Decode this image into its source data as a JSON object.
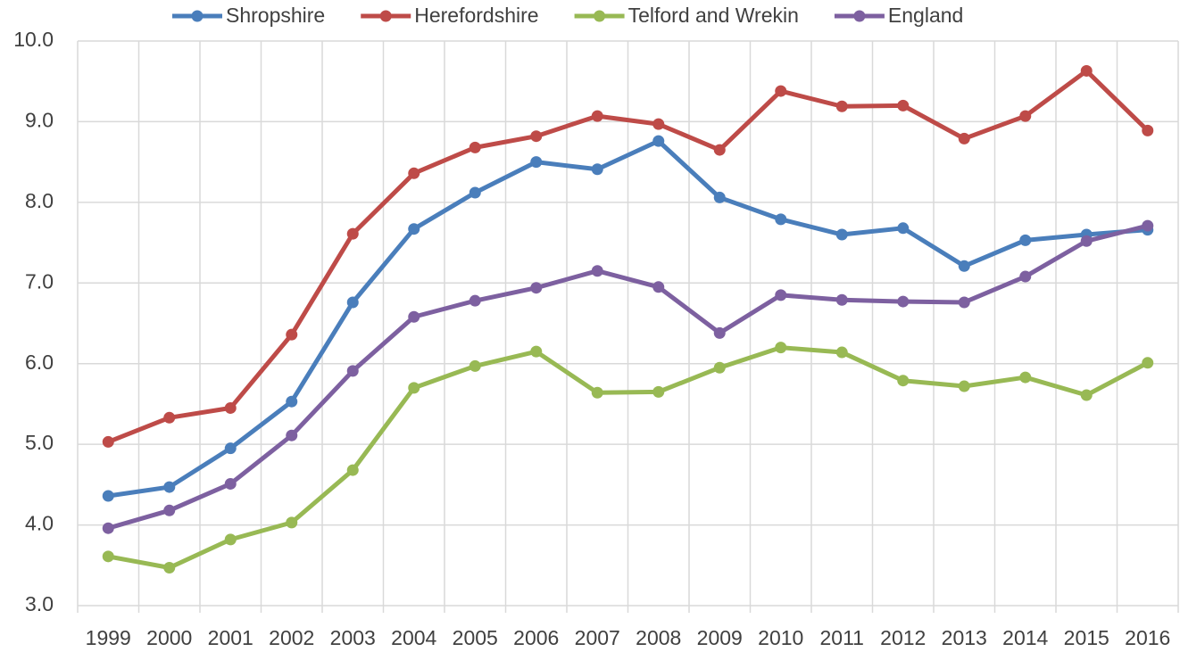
{
  "chart_data": {
    "type": "line",
    "categories": [
      "1999",
      "2000",
      "2001",
      "2002",
      "2003",
      "2004",
      "2005",
      "2006",
      "2007",
      "2008",
      "2009",
      "2010",
      "2011",
      "2012",
      "2013",
      "2014",
      "2015",
      "2016"
    ],
    "series": [
      {
        "name": "Shropshire",
        "color": "#4a7ebb",
        "values": [
          4.36,
          4.47,
          4.95,
          5.53,
          6.76,
          7.67,
          8.12,
          8.5,
          8.41,
          8.76,
          8.06,
          7.79,
          7.6,
          7.68,
          7.21,
          7.53,
          7.6,
          7.66
        ]
      },
      {
        "name": "Herefordshire",
        "color": "#be4b48",
        "values": [
          5.03,
          5.33,
          5.45,
          6.36,
          7.61,
          8.36,
          8.68,
          8.82,
          9.07,
          8.97,
          8.65,
          9.38,
          9.19,
          9.2,
          8.79,
          9.07,
          9.63,
          8.89
        ]
      },
      {
        "name": "Telford and Wrekin",
        "color": "#98b954",
        "values": [
          3.61,
          3.47,
          3.82,
          4.03,
          4.68,
          5.7,
          5.97,
          6.15,
          5.64,
          5.65,
          5.95,
          6.2,
          6.14,
          5.79,
          5.72,
          5.83,
          5.61,
          6.01
        ]
      },
      {
        "name": "England",
        "color": "#7d60a0",
        "values": [
          3.96,
          4.18,
          4.51,
          5.11,
          5.91,
          6.58,
          6.78,
          6.94,
          7.15,
          6.95,
          6.38,
          6.85,
          6.79,
          6.77,
          6.76,
          7.08,
          7.52,
          7.71
        ]
      }
    ],
    "ylim": [
      3,
      10
    ],
    "yticks": [
      {
        "value": 3,
        "label": "3.0"
      },
      {
        "value": 4,
        "label": "4.0"
      },
      {
        "value": 5,
        "label": "5.0"
      },
      {
        "value": 6,
        "label": "6.0"
      },
      {
        "value": 7,
        "label": "7.0"
      },
      {
        "value": 8,
        "label": "8.0"
      },
      {
        "value": 9,
        "label": "9.0"
      },
      {
        "value": 10,
        "label": "10.0"
      }
    ],
    "grid": true,
    "legend": "top"
  }
}
